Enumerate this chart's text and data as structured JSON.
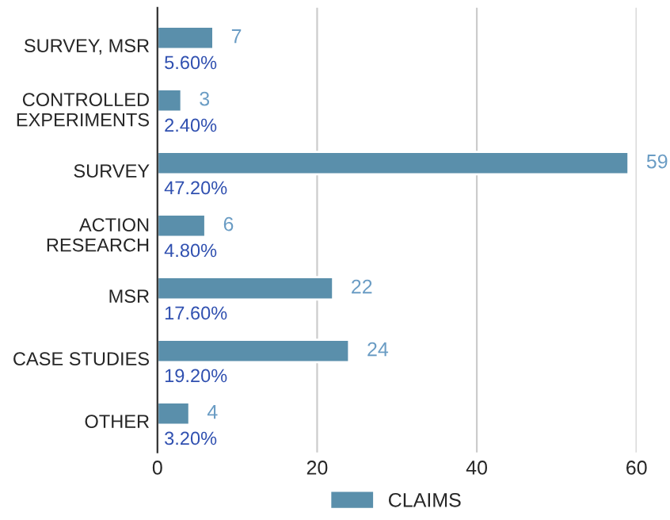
{
  "chart_data": {
    "type": "bar",
    "orientation": "horizontal",
    "categories": [
      "SURVEY, MSR",
      "CONTROLLED\nEXPERIMENTS",
      "SURVEY",
      "ACTION\nRESEARCH",
      "MSR",
      "CASE STUDIES",
      "OTHER"
    ],
    "series": [
      {
        "name": "CLAIMS",
        "color": "#5a8fab",
        "values": [
          7,
          3,
          59,
          6,
          22,
          24,
          4
        ]
      }
    ],
    "xlim": [
      0,
      60
    ],
    "xticks": [
      0,
      20,
      40,
      60
    ],
    "grid": "x",
    "legend": "bottom",
    "data_labels": true,
    "annotations": [
      "5.60%",
      "2.40%",
      "47.20%",
      "4.80%",
      "17.60%",
      "19.20%",
      "3.20%"
    ]
  }
}
